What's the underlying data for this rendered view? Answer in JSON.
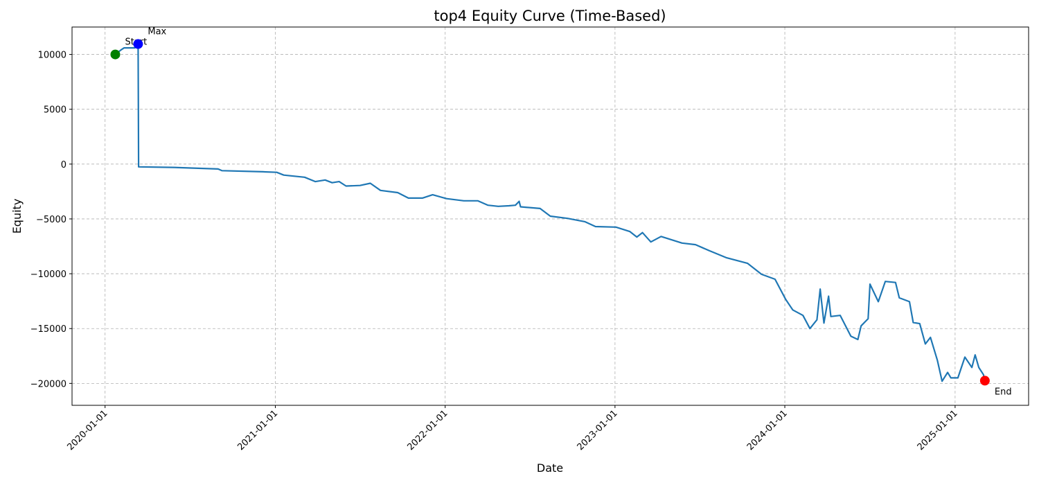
{
  "chart_data": {
    "type": "line",
    "title": "top4 Equity Curve (Time-Based)",
    "x_label": "Date",
    "y_label": "Equity",
    "x": [
      "2020-01-23",
      "2020-02-04",
      "2020-02-11",
      "2020-03-05",
      "2020-03-12",
      "2020-03-13",
      "2020-05-26",
      "2020-08-31",
      "2020-09-08",
      "2020-12-05",
      "2021-01-04",
      "2021-01-19",
      "2021-03-05",
      "2021-03-28",
      "2021-04-18",
      "2021-05-03",
      "2021-05-18",
      "2021-06-02",
      "2021-07-02",
      "2021-07-24",
      "2021-08-15",
      "2021-09-21",
      "2021-10-14",
      "2021-11-13",
      "2021-12-05",
      "2022-01-04",
      "2022-02-10",
      "2022-03-12",
      "2022-04-03",
      "2022-04-25",
      "2022-05-18",
      "2022-06-01",
      "2022-06-09",
      "2022-06-12",
      "2022-07-24",
      "2022-08-15",
      "2022-09-21",
      "2022-10-28",
      "2022-11-20",
      "2023-01-03",
      "2023-02-02",
      "2023-02-17",
      "2023-03-01",
      "2023-03-19",
      "2023-04-10",
      "2023-05-25",
      "2023-06-23",
      "2023-07-23",
      "2023-08-29",
      "2023-10-13",
      "2023-11-12",
      "2023-12-11",
      "2024-01-03",
      "2024-01-18",
      "2024-02-09",
      "2024-02-24",
      "2024-03-10",
      "2024-03-17",
      "2024-03-25",
      "2024-04-04",
      "2024-04-09",
      "2024-04-29",
      "2024-05-22",
      "2024-06-06",
      "2024-06-13",
      "2024-06-28",
      "2024-07-02",
      "2024-07-20",
      "2024-08-04",
      "2024-08-26",
      "2024-09-03",
      "2024-09-25",
      "2024-10-03",
      "2024-10-17",
      "2024-10-29",
      "2024-11-09",
      "2024-11-24",
      "2024-12-04",
      "2024-12-16",
      "2024-12-23",
      "2025-01-07",
      "2025-01-22",
      "2025-02-06",
      "2025-02-13",
      "2025-02-21",
      "2025-03-03",
      "2025-03-06"
    ],
    "series": [
      {
        "name": "Equity",
        "color": "#1f77b4",
        "values": [
          10000,
          10400,
          10600,
          10600,
          10950,
          -250,
          -300,
          -450,
          -600,
          -700,
          -750,
          -1000,
          -1200,
          -1600,
          -1450,
          -1700,
          -1600,
          -2000,
          -1950,
          -1750,
          -2400,
          -2600,
          -3100,
          -3100,
          -2800,
          -3150,
          -3350,
          -3350,
          -3750,
          -3850,
          -3800,
          -3750,
          -3400,
          -3900,
          -4050,
          -4750,
          -4950,
          -5250,
          -5700,
          -5750,
          -6150,
          -6650,
          -6250,
          -7100,
          -6600,
          -7200,
          -7350,
          -7900,
          -8550,
          -9050,
          -10050,
          -10500,
          -12350,
          -13300,
          -13800,
          -15000,
          -14200,
          -11400,
          -14500,
          -12050,
          -13900,
          -13800,
          -15700,
          -16000,
          -14750,
          -14100,
          -10950,
          -12550,
          -10700,
          -10800,
          -12200,
          -12550,
          -14450,
          -14550,
          -16400,
          -15800,
          -17900,
          -19800,
          -19000,
          -19500,
          -19500,
          -17600,
          -18550,
          -17400,
          -18550,
          -19200,
          -19750
        ]
      }
    ],
    "markers": [
      {
        "label": "Start",
        "x": "2020-01-23",
        "y": 10000,
        "color": "#008000"
      },
      {
        "label": "Max",
        "x": "2020-03-12",
        "y": 10950,
        "color": "#0000ff"
      },
      {
        "label": "End",
        "x": "2025-03-06",
        "y": -19750,
        "color": "#ff0000"
      }
    ],
    "xlim": [
      "2019-10-22",
      "2025-06-08"
    ],
    "xticks": [
      "2020-01-01",
      "2021-01-01",
      "2022-01-01",
      "2023-01-01",
      "2024-01-01",
      "2025-01-01"
    ],
    "ylim": [
      -22000,
      12500
    ],
    "yticks": [
      {
        "value": -20000,
        "label": "−20000"
      },
      {
        "value": -15000,
        "label": "−15000"
      },
      {
        "value": -10000,
        "label": "−10000"
      },
      {
        "value": -5000,
        "label": "−5000"
      },
      0,
      5000,
      10000
    ],
    "grid": true
  }
}
